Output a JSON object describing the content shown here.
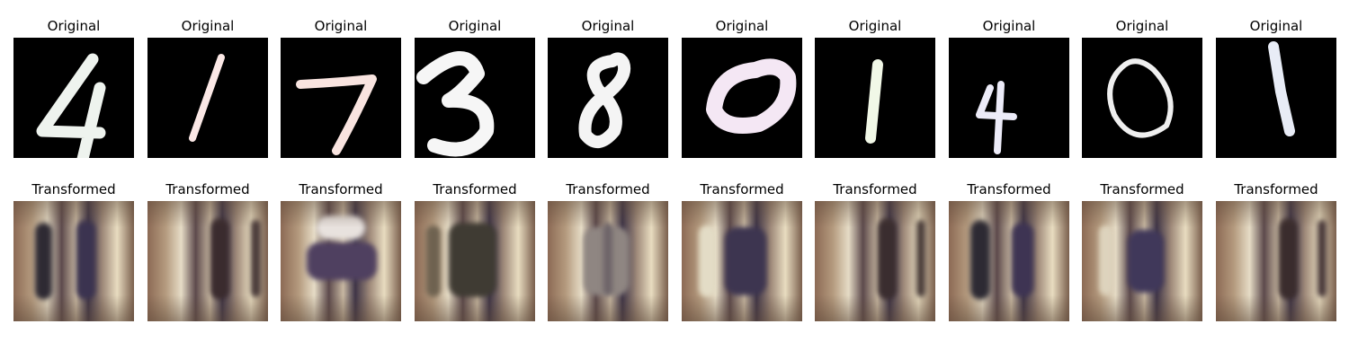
{
  "labels": {
    "original": "Original",
    "transformed": "Transformed"
  },
  "digits": [
    "4",
    "1",
    "7",
    "3",
    "8",
    "0",
    "1",
    "4",
    "0",
    "1"
  ],
  "colors": {
    "original_background": "#000000",
    "digit_stroke": [
      "#eef3ee",
      "#fbe8e6",
      "#f9e4e0",
      "#f6f6f6",
      "#f4f4f4",
      "#f4e7f4",
      "#f1f8e7",
      "#ecebf8",
      "#efefef",
      "#e8ecf6"
    ],
    "transformed_palette": [
      "#8c6a55",
      "#b49a7e",
      "#e6dcc6",
      "#5d4a4c",
      "#3f3547",
      "#7a5f4d"
    ]
  }
}
